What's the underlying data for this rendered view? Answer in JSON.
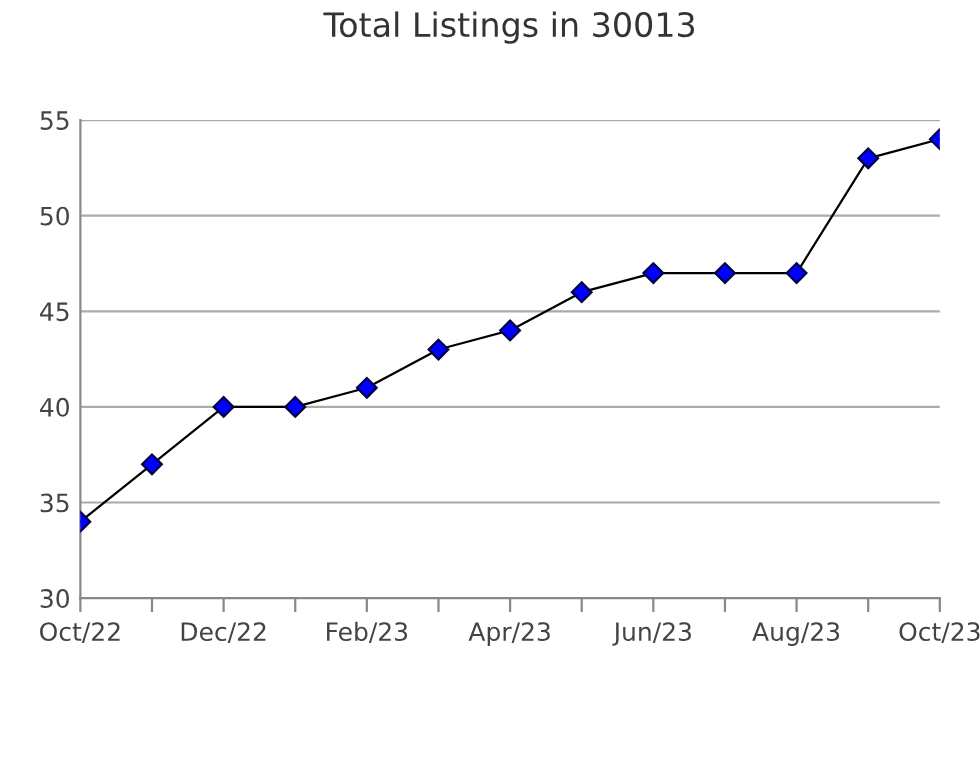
{
  "chart_data": {
    "type": "line",
    "title": "Total Listings in 30013",
    "categories": [
      "Oct/22",
      null,
      "Dec/22",
      null,
      "Feb/23",
      null,
      "Apr/23",
      null,
      "Jun/23",
      null,
      "Aug/23",
      null,
      "Oct/23"
    ],
    "series": [
      {
        "color": "#0000ff",
        "values": [
          34,
          37,
          40,
          40,
          41,
          43,
          44,
          46,
          47,
          47,
          47,
          53,
          54
        ]
      }
    ],
    "ylim": [
      30,
      55
    ],
    "yticks": [
      30,
      35,
      40,
      45,
      50,
      55
    ],
    "grid": "y",
    "marker": "diamond",
    "line_style": "solid",
    "legend": false
  }
}
